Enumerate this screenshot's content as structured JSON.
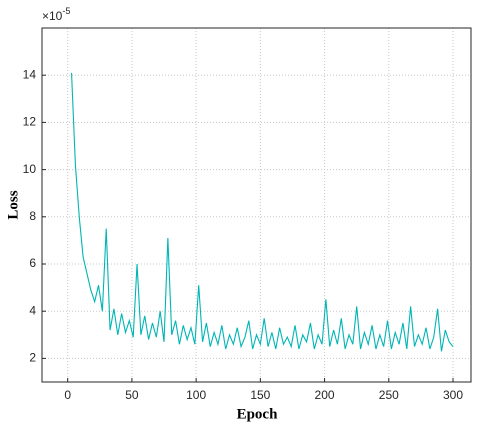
{
  "chart_data": {
    "type": "line",
    "x_label": "Epoch",
    "y_label": "Loss",
    "y_exponent_base": "×10",
    "y_exponent": "-5",
    "x": [
      3,
      6,
      9,
      12,
      15,
      18,
      21,
      24,
      27,
      30,
      33,
      36,
      39,
      42,
      45,
      48,
      51,
      54,
      57,
      60,
      63,
      66,
      69,
      72,
      75,
      78,
      81,
      84,
      87,
      90,
      93,
      96,
      99,
      102,
      105,
      108,
      111,
      114,
      117,
      120,
      123,
      126,
      129,
      132,
      135,
      138,
      141,
      144,
      147,
      150,
      153,
      156,
      159,
      162,
      165,
      168,
      171,
      174,
      177,
      180,
      183,
      186,
      189,
      192,
      195,
      198,
      201,
      204,
      207,
      210,
      213,
      216,
      219,
      222,
      225,
      228,
      231,
      234,
      237,
      240,
      243,
      246,
      249,
      252,
      255,
      258,
      261,
      264,
      267,
      270,
      273,
      276,
      279,
      282,
      285,
      288,
      291,
      294,
      297,
      300
    ],
    "series": [
      {
        "color": "#00b5b5",
        "values": [
          14.1,
          10.2,
          8.0,
          6.3,
          5.6,
          4.9,
          4.4,
          5.1,
          4.0,
          7.5,
          3.2,
          4.1,
          3.0,
          3.9,
          3.1,
          3.6,
          2.9,
          6.0,
          3.0,
          3.8,
          2.8,
          3.5,
          2.9,
          4.0,
          2.7,
          7.1,
          3.0,
          3.6,
          2.6,
          3.4,
          2.8,
          3.3,
          2.6,
          5.1,
          2.7,
          3.5,
          2.5,
          3.1,
          2.6,
          3.4,
          2.4,
          3.0,
          2.6,
          3.3,
          2.5,
          2.9,
          3.6,
          2.4,
          3.0,
          2.6,
          3.7,
          2.5,
          3.1,
          2.4,
          3.3,
          2.6,
          2.9,
          2.5,
          3.4,
          2.4,
          3.0,
          2.7,
          3.5,
          2.4,
          3.0,
          2.6,
          4.5,
          2.5,
          3.2,
          2.6,
          3.7,
          2.4,
          3.0,
          2.6,
          4.2,
          2.4,
          3.1,
          2.6,
          3.4,
          2.4,
          3.0,
          2.5,
          3.6,
          2.4,
          3.1,
          2.6,
          3.5,
          2.4,
          4.2,
          2.5,
          3.0,
          2.6,
          3.3,
          2.4,
          2.9,
          4.1,
          2.3,
          3.2,
          2.7,
          2.5
        ]
      }
    ],
    "xlim": [
      -20,
      314
    ],
    "ylim": [
      1,
      16
    ],
    "xticks": [
      0,
      50,
      100,
      150,
      200,
      250,
      300
    ],
    "yticks": [
      2,
      4,
      6,
      8,
      10,
      12,
      14
    ],
    "grid": true
  }
}
